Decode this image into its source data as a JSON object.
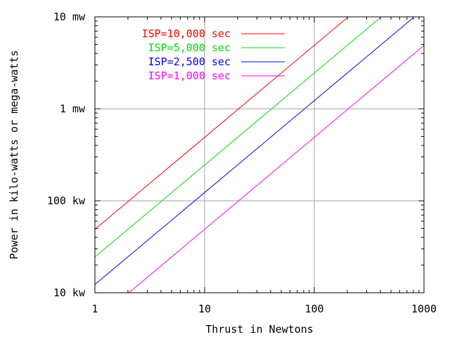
{
  "chart_data": {
    "type": "line",
    "xscale": "log",
    "yscale": "log",
    "xlabel": "Thrust in Newtons",
    "ylabel": "Power in kilo-watts or mega-watts",
    "xlim": [
      1,
      1000
    ],
    "ylim": [
      10,
      10000
    ],
    "xticks": [
      {
        "value": 1,
        "label": "1"
      },
      {
        "value": 10,
        "label": "10"
      },
      {
        "value": 100,
        "label": "100"
      },
      {
        "value": 1000,
        "label": "1000"
      }
    ],
    "yticks": [
      {
        "value": 10,
        "label": "10 kw"
      },
      {
        "value": 100,
        "label": "100 kw"
      },
      {
        "value": 1000,
        "label": "1 mw"
      },
      {
        "value": 10000,
        "label": "10 mw"
      }
    ],
    "grid": true,
    "legend_position": "top-left",
    "series": [
      {
        "name": "ISP=10,000 sec",
        "color": "#ff0000",
        "x": [
          1,
          200
        ],
        "y": [
          49,
          9800
        ]
      },
      {
        "name": "ISP=5,000 sec",
        "color": "#00dd00",
        "x": [
          1,
          400
        ],
        "y": [
          24.5,
          9800
        ]
      },
      {
        "name": "ISP=2,500 sec",
        "color": "#0000ff",
        "x": [
          1,
          800
        ],
        "y": [
          12.3,
          9800
        ]
      },
      {
        "name": "ISP=1,000 sec",
        "color": "#ff00ff",
        "x": [
          2.04,
          1000
        ],
        "y": [
          10,
          4900
        ]
      }
    ]
  }
}
